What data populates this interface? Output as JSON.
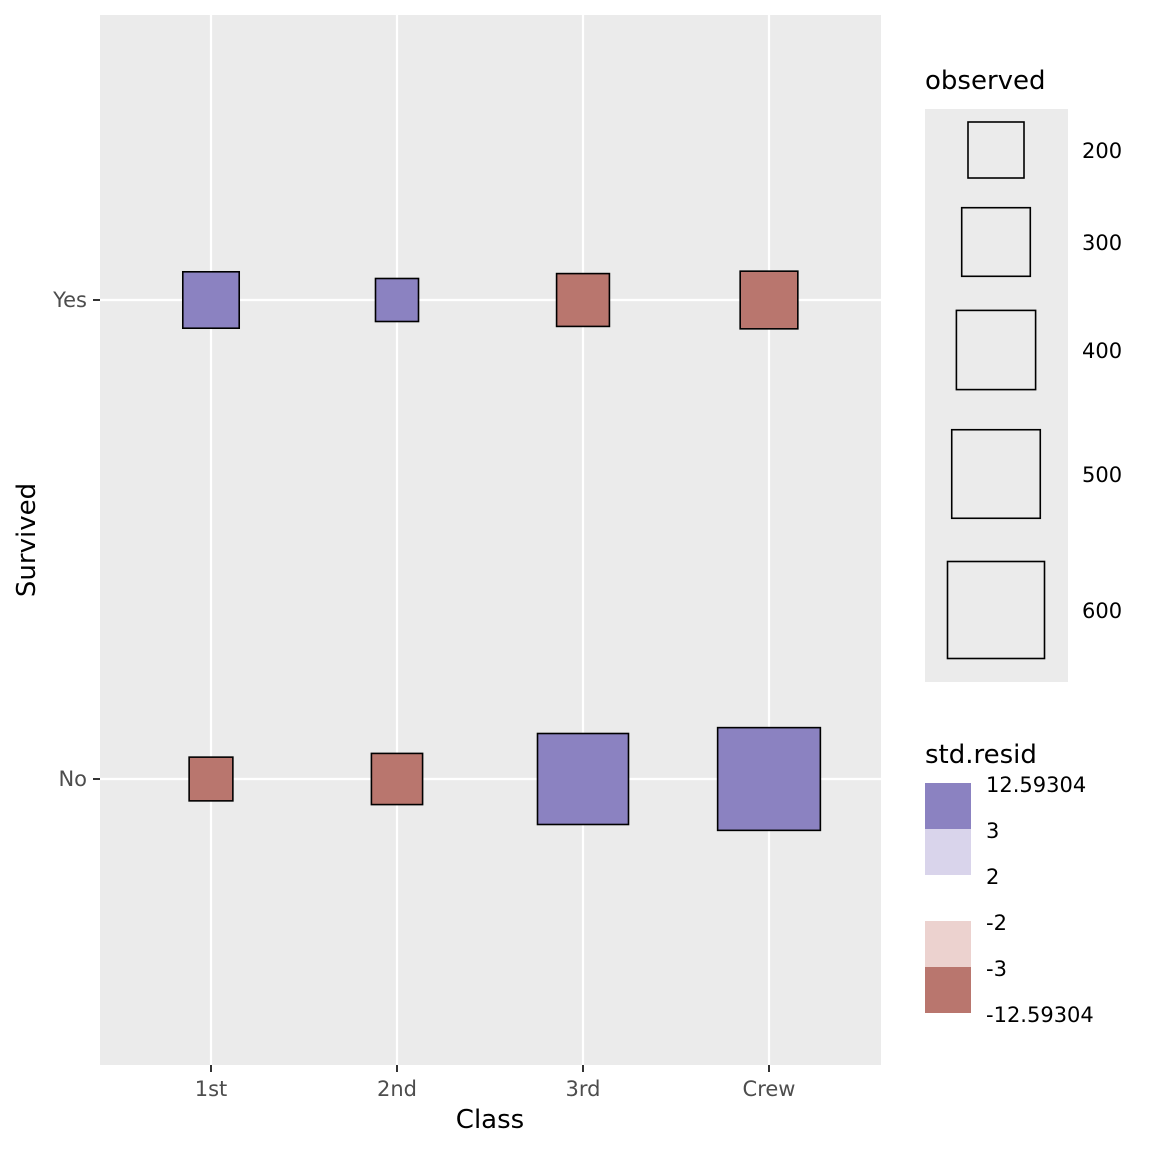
{
  "chart_data": {
    "type": "mosaic",
    "xlabel": "Class",
    "ylabel": "Survived",
    "x_categories": [
      "1st",
      "2nd",
      "3rd",
      "Crew"
    ],
    "y_categories": [
      "Yes",
      "No"
    ],
    "cells": [
      {
        "x": "1st",
        "y": "Yes",
        "observed": 203,
        "fill": "#8b82c1"
      },
      {
        "x": "2nd",
        "y": "Yes",
        "observed": 118,
        "fill": "#8b82c1"
      },
      {
        "x": "3rd",
        "y": "Yes",
        "observed": 178,
        "fill": "#b9766e"
      },
      {
        "x": "Crew",
        "y": "Yes",
        "observed": 212,
        "fill": "#b9766e"
      },
      {
        "x": "1st",
        "y": "No",
        "observed": 122,
        "fill": "#b9766e"
      },
      {
        "x": "2nd",
        "y": "No",
        "observed": 167,
        "fill": "#b9766e"
      },
      {
        "x": "3rd",
        "y": "No",
        "observed": 528,
        "fill": "#8b82c1"
      },
      {
        "x": "Crew",
        "y": "No",
        "observed": 673,
        "fill": "#8b82c1"
      }
    ],
    "legend_size": {
      "title": "observed",
      "values": [
        200,
        300,
        400,
        500,
        600
      ],
      "labels": [
        "200",
        "300",
        "400",
        "500",
        "600"
      ]
    },
    "legend_fill": {
      "title": "std.resid",
      "blocks": [
        {
          "fill": "#8b82c1"
        },
        {
          "fill": "#d9d4eb"
        },
        {
          "fill": "#ecd2cf"
        },
        {
          "fill": "#b9766e"
        }
      ],
      "labels": [
        "12.59304",
        "3",
        "2",
        "-2",
        "-3",
        "-12.59304"
      ]
    },
    "panel_background": "#ebebeb",
    "grid": true
  }
}
